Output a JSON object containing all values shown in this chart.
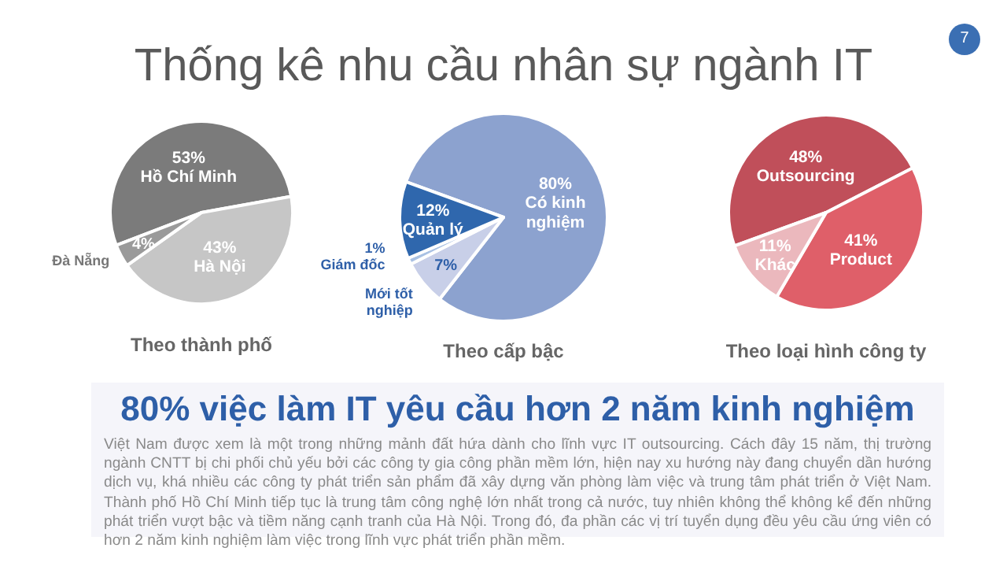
{
  "chart_data": [
    {
      "type": "other",
      "title": "Thống kê nhu cầu nhân sự ngành IT",
      "annotations": [
        "7"
      ]
    },
    {
      "type": "pie",
      "title": "Theo thành phố",
      "categories": [
        "Hồ Chí Minh",
        "Hà Nội",
        "Đà Nẵng"
      ],
      "values": [
        53,
        43,
        4
      ],
      "value_labels": [
        "53%",
        "43%",
        "4%"
      ],
      "colors": [
        "#7b7b7b",
        "#c6c6c6",
        "#9a9a9a"
      ]
    },
    {
      "type": "pie",
      "title": "Theo cấp bậc",
      "categories": [
        "Có kinh nghiệm",
        "Mới tốt nghiệp",
        "Giám đốc",
        "Quản lý"
      ],
      "values": [
        80,
        7,
        1,
        12
      ],
      "value_labels": [
        "80%",
        "7%",
        "1%",
        "12%"
      ],
      "colors": [
        "#8ca2cf",
        "#c8cfe8",
        "#a9c1e3",
        "#2f67ad"
      ]
    },
    {
      "type": "pie",
      "title": "Theo loại hình công ty",
      "categories": [
        "Outsourcing",
        "Product",
        "Khác"
      ],
      "values": [
        48,
        41,
        11
      ],
      "value_labels": [
        "48%",
        "41%",
        "11%"
      ],
      "colors": [
        "#c04f5a",
        "#df5f69",
        "#ebb8bd"
      ]
    },
    {
      "type": "other",
      "title": "80% việc làm IT yêu cầu hơn 2 năm kinh nghiệm",
      "annotations": [
        "Việt Nam được xem là một trong những mảnh đất hứa dành cho lĩnh vực IT outsourcing. Cách đây 15 năm, thị trường ngành CNTT bị chi phối chủ yếu bởi các công ty gia công phần mềm lớn, hiện nay xu hướng này đang chuyển dần hướng dịch vụ, khá nhiều các công ty phát triển sản phẩm đã xây dựng văn phòng làm việc và trung tâm phát triển ở Việt Nam. Thành phố Hồ Chí Minh tiếp tục là trung tâm công nghệ lớn nhất trong cả nước, tuy nhiên không thể không kể đến những phát triển vượt bậc và tiềm năng cạnh tranh của Hà Nội. Trong đó, đa phần các vị trí tuyển dụng đều yêu cầu ứng viên có hơn 2 năm kinh nghiệm làm việc trong lĩnh vực phát triển phần mềm."
      ]
    }
  ]
}
